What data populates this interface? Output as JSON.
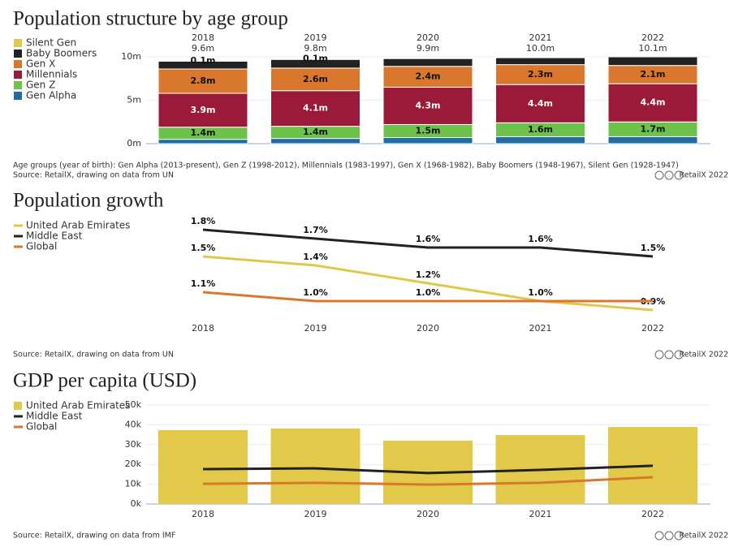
{
  "chart_data": [
    {
      "type": "bar",
      "stacked": true,
      "title": "Population structure by age group",
      "categories": [
        "2018",
        "2019",
        "2020",
        "2021",
        "2022"
      ],
      "total_labels": [
        "9.6m",
        "9.8m",
        "9.9m",
        "10.0m",
        "10.1m"
      ],
      "series": [
        {
          "name": "Silent Gen",
          "color": "#e2c94a",
          "values": [
            0.1,
            0.1,
            0.1,
            0.1,
            0.1
          ],
          "value_labels": [
            "0.1m",
            "0.1m",
            null,
            null,
            null
          ]
        },
        {
          "name": "Baby Boomers",
          "color": "#222222",
          "values": [
            0.9,
            1.0,
            0.9,
            0.8,
            1.0
          ],
          "value_labels": [
            null,
            null,
            null,
            null,
            null
          ]
        },
        {
          "name": "Gen X",
          "color": "#d9782d",
          "values": [
            2.8,
            2.6,
            2.4,
            2.3,
            2.1
          ],
          "value_labels": [
            "2.8m",
            "2.6m",
            "2.4m",
            "2.3m",
            "2.1m"
          ]
        },
        {
          "name": "Millennials",
          "color": "#9b1a3a",
          "values": [
            3.9,
            4.1,
            4.3,
            4.4,
            4.4
          ],
          "value_labels": [
            "3.9m",
            "4.1m",
            "4.3m",
            "4.4m",
            "4.4m"
          ]
        },
        {
          "name": "Gen Z",
          "color": "#6cc24a",
          "values": [
            1.4,
            1.4,
            1.5,
            1.6,
            1.7
          ],
          "value_labels": [
            "1.4m",
            "1.4m",
            "1.5m",
            "1.6m",
            "1.7m"
          ]
        },
        {
          "name": "Gen Alpha",
          "color": "#1f6ea3",
          "values": [
            0.5,
            0.6,
            0.7,
            0.8,
            0.8
          ],
          "value_labels": [
            null,
            null,
            null,
            null,
            null
          ]
        }
      ],
      "ylim": [
        0,
        10
      ],
      "yticks": [
        {
          "value": 0,
          "label": "0m"
        },
        {
          "value": 5,
          "label": "5m"
        },
        {
          "value": 10,
          "label": "10m"
        }
      ],
      "grid": true,
      "note": "Age groups (year of birth): Gen Alpha (2013-present), Gen Z (1998-2012), Millennials (1983-1997), Gen X (1968-1982), Baby Boomers (1948-1967), Silent Gen (1928-1947)",
      "source": "Source: RetailX, drawing on data from UN",
      "credit": "RetailX 2022"
    },
    {
      "type": "line",
      "title": "Population growth",
      "categories": [
        "2018",
        "2019",
        "2020",
        "2021",
        "2022"
      ],
      "series": [
        {
          "name": "United Arab Emirates",
          "color": "#e0c84c",
          "values": [
            1.5,
            1.4,
            1.2,
            1.0,
            0.9
          ],
          "value_labels": [
            "1.5%",
            "1.4%",
            "1.2%",
            "1.0%",
            "0.9%"
          ]
        },
        {
          "name": "Middle East",
          "color": "#222222",
          "values": [
            1.8,
            1.7,
            1.6,
            1.6,
            1.5
          ],
          "value_labels": [
            "1.8%",
            "1.7%",
            "1.6%",
            "1.6%",
            "1.5%"
          ]
        },
        {
          "name": "Global",
          "color": "#d9782d",
          "values": [
            1.1,
            1.0,
            1.0,
            1.0,
            1.0
          ],
          "value_labels": [
            "1.1%",
            "1.0%",
            "1.0%",
            null,
            null
          ]
        }
      ],
      "ylim": [
        0.8,
        1.9
      ],
      "source": "Source: RetailX, drawing on data from UN",
      "credit": "RetailX 2022"
    },
    {
      "type": "combo",
      "title": "GDP per capita (USD)",
      "categories": [
        "2018",
        "2019",
        "2020",
        "2021",
        "2022"
      ],
      "series": [
        {
          "name": "United Arab Emirates",
          "kind": "bar",
          "color": "#e2c94a",
          "values": [
            37300,
            38100,
            32000,
            34800,
            38900
          ]
        },
        {
          "name": "Middle East",
          "kind": "line",
          "color": "#222222",
          "values": [
            17600,
            18000,
            15600,
            17200,
            19300
          ]
        },
        {
          "name": "Global",
          "kind": "line",
          "color": "#d9782d",
          "values": [
            10200,
            10700,
            9800,
            10700,
            13500
          ]
        }
      ],
      "ylim": [
        0,
        50000
      ],
      "yticks": [
        {
          "value": 0,
          "label": "0k"
        },
        {
          "value": 10000,
          "label": "10k"
        },
        {
          "value": 20000,
          "label": "20k"
        },
        {
          "value": 30000,
          "label": "30k"
        },
        {
          "value": 40000,
          "label": "40k"
        },
        {
          "value": 50000,
          "label": "50k"
        }
      ],
      "grid": true,
      "source": "Source: RetailX, drawing on data from IMF",
      "credit": "RetailX 2022"
    }
  ]
}
